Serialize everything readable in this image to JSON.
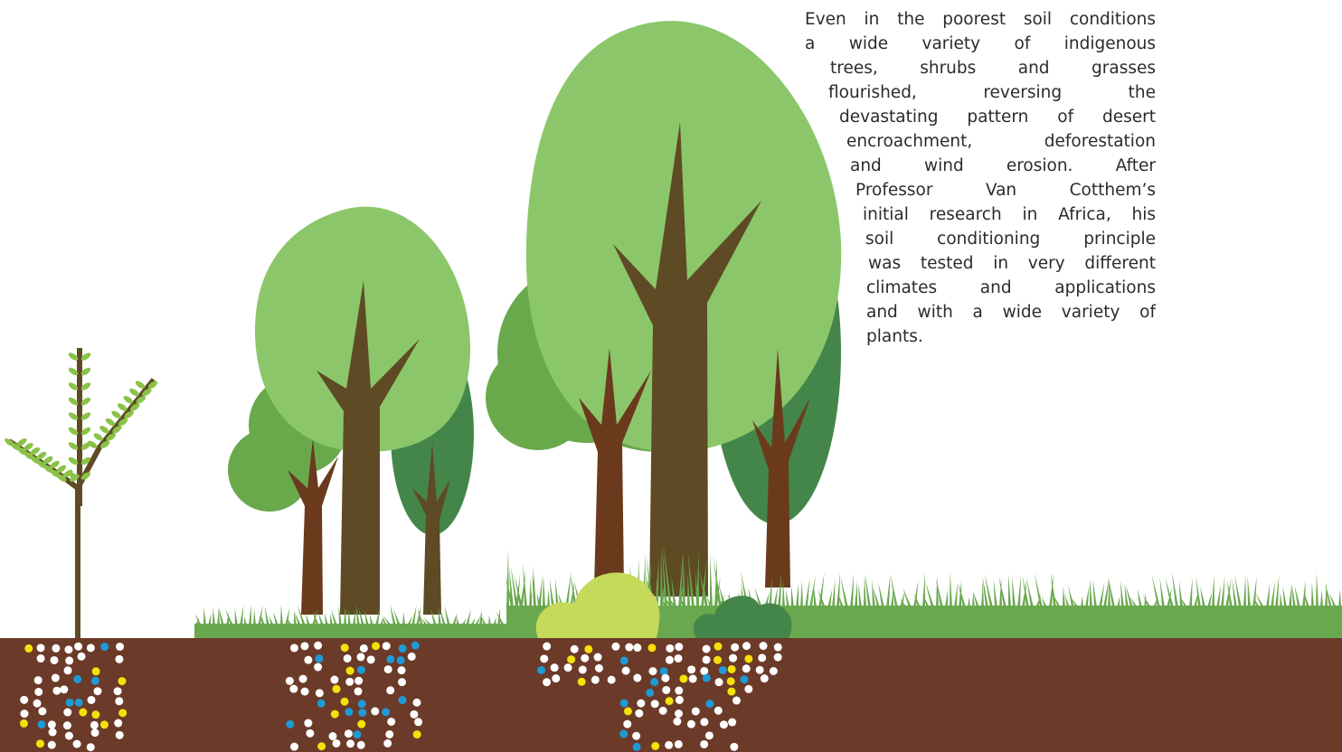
{
  "paragraph": {
    "lines": [
      "Even in the poorest soil conditions",
      "a wide variety of indigenous",
      "trees, shrubs and grasses",
      "flourished, reversing the",
      "devastating pattern of desert",
      "encroachment, deforestation",
      "and wind erosion. After",
      "Professor Van Cotthem’s",
      "initial research in Africa, his",
      "soil conditioning principle",
      "was tested in very different",
      "climates and applications",
      "and with a wide variety of",
      "plants."
    ]
  }
}
